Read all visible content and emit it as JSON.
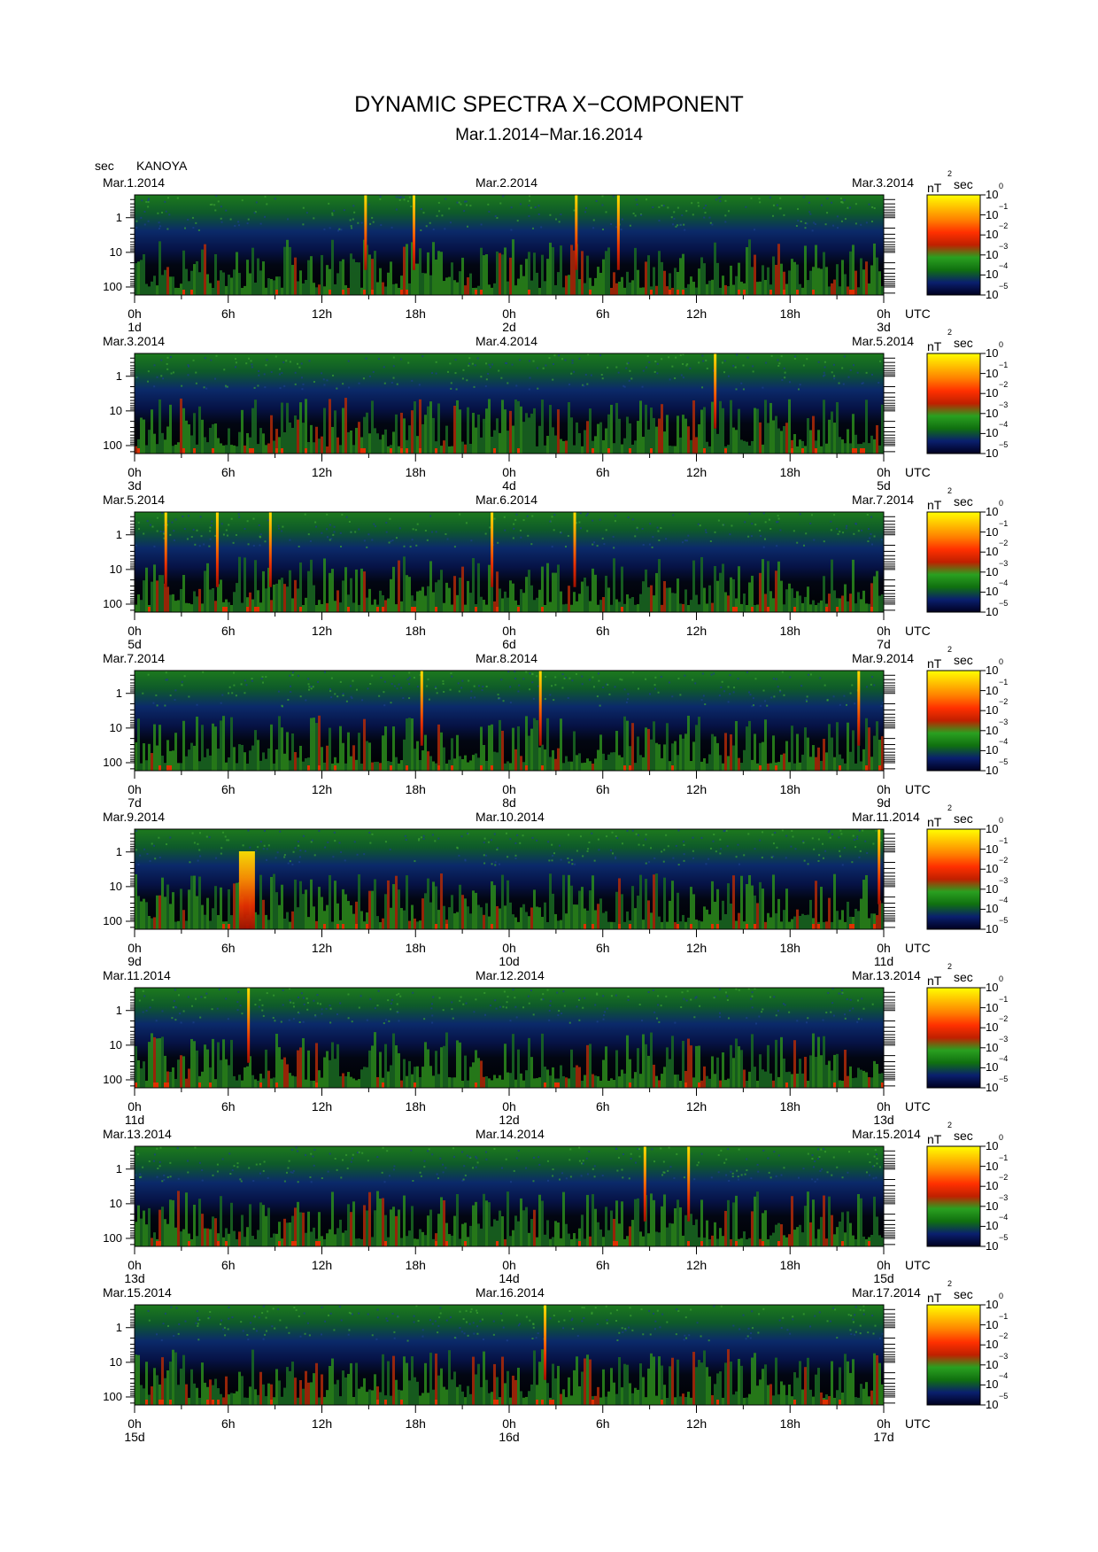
{
  "title": "DYNAMIC SPECTRA X−COMPONENT",
  "subtitle": "Mar.1.2014−Mar.16.2014",
  "y_unit": "sec",
  "station": "KANOYA",
  "x_unit": "UTC",
  "colorbar": {
    "unit_prefix": "nT",
    "unit_sup": "2",
    "unit_suffix": "sec",
    "tick_base": "10",
    "tick_exponents": [
      "0",
      "−1",
      "−2",
      "−3",
      "−4",
      "−5"
    ],
    "colors": [
      "#000020",
      "#0a1f6e",
      "#107010",
      "#2aa020",
      "#c02000",
      "#ff3000",
      "#ff8000",
      "#ffc000",
      "#ffff00"
    ]
  },
  "chart_data": {
    "type": "heatmap",
    "y_scale": "log",
    "y_ticks": [
      "1",
      "10",
      "100"
    ],
    "x_ticks": [
      "0h",
      "6h",
      "12h",
      "18h",
      "0h",
      "6h",
      "12h",
      "18h",
      "0h"
    ],
    "panels": [
      {
        "date_left": "Mar.1.2014",
        "date_mid": "Mar.2.2014",
        "date_right": "Mar.3.2014",
        "day_labels": [
          "1d",
          "2d",
          "3d"
        ]
      },
      {
        "date_left": "Mar.3.2014",
        "date_mid": "Mar.4.2014",
        "date_right": "Mar.5.2014",
        "day_labels": [
          "3d",
          "4d",
          "5d"
        ]
      },
      {
        "date_left": "Mar.5.2014",
        "date_mid": "Mar.6.2014",
        "date_right": "Mar.7.2014",
        "day_labels": [
          "5d",
          "6d",
          "7d"
        ]
      },
      {
        "date_left": "Mar.7.2014",
        "date_mid": "Mar.8.2014",
        "date_right": "Mar.9.2014",
        "day_labels": [
          "7d",
          "8d",
          "9d"
        ]
      },
      {
        "date_left": "Mar.9.2014",
        "date_mid": "Mar.10.2014",
        "date_right": "Mar.11.2014",
        "day_labels": [
          "9d",
          "10d",
          "11d"
        ]
      },
      {
        "date_left": "Mar.11.2014",
        "date_mid": "Mar.12.2014",
        "date_right": "Mar.13.2014",
        "day_labels": [
          "11d",
          "12d",
          "13d"
        ]
      },
      {
        "date_left": "Mar.13.2014",
        "date_mid": "Mar.14.2014",
        "date_right": "Mar.15.2014",
        "day_labels": [
          "13d",
          "14d",
          "15d"
        ]
      },
      {
        "date_left": "Mar.15.2014",
        "date_mid": "Mar.16.2014",
        "date_right": "Mar.17.2014",
        "day_labels": [
          "15d",
          "16d",
          "17d"
        ]
      }
    ]
  }
}
